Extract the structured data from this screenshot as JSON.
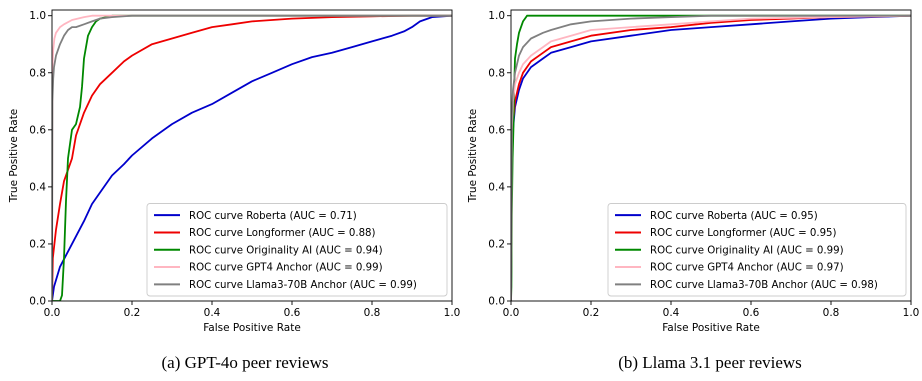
{
  "figure": {
    "captions": [
      "(a) GPT-4o peer reviews",
      "(b) Llama 3.1 peer reviews"
    ]
  },
  "chart_data": [
    {
      "type": "line",
      "caption": "(a) GPT-4o peer reviews",
      "xlabel": "False Positive Rate",
      "ylabel": "True Positive Rate",
      "xlim": [
        0.0,
        1.0
      ],
      "ylim": [
        0.0,
        1.02
      ],
      "xticks": [
        "0.0",
        "0.2",
        "0.4",
        "0.6",
        "0.8",
        "1.0"
      ],
      "yticks": [
        "0.0",
        "0.2",
        "0.4",
        "0.6",
        "0.8",
        "1.0"
      ],
      "grid": false,
      "legend_position": "bottom-right",
      "series": [
        {
          "name": "ROC curve Roberta (AUC = 0.71)",
          "color": "#0000cc",
          "x": [
            0,
            0.005,
            0.02,
            0.05,
            0.08,
            0.1,
            0.13,
            0.15,
            0.18,
            0.2,
            0.25,
            0.3,
            0.35,
            0.4,
            0.45,
            0.5,
            0.55,
            0.6,
            0.65,
            0.7,
            0.75,
            0.8,
            0.85,
            0.88,
            0.9,
            0.92,
            0.95,
            1.0
          ],
          "y": [
            0,
            0.05,
            0.12,
            0.2,
            0.28,
            0.34,
            0.4,
            0.44,
            0.48,
            0.51,
            0.57,
            0.62,
            0.66,
            0.69,
            0.73,
            0.77,
            0.8,
            0.83,
            0.855,
            0.87,
            0.89,
            0.91,
            0.93,
            0.945,
            0.96,
            0.98,
            0.995,
            1.0
          ]
        },
        {
          "name": "ROC curve Longformer (AUC = 0.88)",
          "color": "#ee0000",
          "x": [
            0,
            0.002,
            0.01,
            0.02,
            0.03,
            0.05,
            0.06,
            0.08,
            0.1,
            0.12,
            0.15,
            0.18,
            0.2,
            0.25,
            0.3,
            0.35,
            0.4,
            0.45,
            0.5,
            0.55,
            0.6,
            0.7,
            0.8,
            0.9,
            1.0
          ],
          "y": [
            0,
            0.15,
            0.25,
            0.34,
            0.42,
            0.5,
            0.58,
            0.66,
            0.72,
            0.76,
            0.8,
            0.84,
            0.86,
            0.9,
            0.92,
            0.94,
            0.96,
            0.97,
            0.98,
            0.985,
            0.99,
            0.995,
            0.998,
            1.0,
            1.0
          ]
        },
        {
          "name": "ROC curve Originality AI (AUC = 0.94)",
          "color": "#008800",
          "x": [
            0,
            0.02,
            0.025,
            0.03,
            0.035,
            0.04,
            0.05,
            0.06,
            0.07,
            0.075,
            0.08,
            0.09,
            0.1,
            0.11,
            0.12,
            0.15,
            0.2,
            0.3,
            0.5,
            1.0
          ],
          "y": [
            0,
            0.0,
            0.02,
            0.15,
            0.35,
            0.5,
            0.6,
            0.62,
            0.68,
            0.75,
            0.85,
            0.93,
            0.96,
            0.98,
            0.99,
            1.0,
            1.0,
            1.0,
            1.0,
            1.0
          ]
        },
        {
          "name": "ROC curve GPT4 Anchor (AUC = 0.99)",
          "color": "#ffb6c1",
          "x": [
            0,
            0.001,
            0.003,
            0.006,
            0.01,
            0.02,
            0.03,
            0.05,
            0.08,
            0.1,
            0.15,
            0.2,
            0.3,
            0.5,
            1.0
          ],
          "y": [
            0,
            0.82,
            0.88,
            0.92,
            0.94,
            0.96,
            0.97,
            0.985,
            0.995,
            1.0,
            1.0,
            1.0,
            1.0,
            1.0,
            1.0
          ]
        },
        {
          "name": "ROC curve Llama3-70B Anchor (AUC = 0.99)",
          "color": "#808080",
          "x": [
            0,
            0.001,
            0.003,
            0.005,
            0.01,
            0.02,
            0.03,
            0.04,
            0.05,
            0.06,
            0.08,
            0.1,
            0.12,
            0.15,
            0.2,
            0.3,
            0.5,
            1.0
          ],
          "y": [
            0,
            0.7,
            0.78,
            0.82,
            0.86,
            0.9,
            0.93,
            0.95,
            0.96,
            0.96,
            0.97,
            0.98,
            0.99,
            0.995,
            1.0,
            1.0,
            1.0,
            1.0
          ]
        }
      ]
    },
    {
      "type": "line",
      "caption": "(b) Llama 3.1 peer reviews",
      "xlabel": "False Positive Rate",
      "ylabel": "True Positive Rate",
      "xlim": [
        0.0,
        1.0
      ],
      "ylim": [
        0.0,
        1.02
      ],
      "xticks": [
        "0.0",
        "0.2",
        "0.4",
        "0.6",
        "0.8",
        "1.0"
      ],
      "yticks": [
        "0.0",
        "0.2",
        "0.4",
        "0.6",
        "0.8",
        "1.0"
      ],
      "grid": false,
      "legend_position": "bottom-right",
      "series": [
        {
          "name": "ROC curve Roberta  (AUC = 0.95)",
          "color": "#0000cc",
          "x": [
            0,
            0.002,
            0.005,
            0.01,
            0.02,
            0.03,
            0.05,
            0.08,
            0.1,
            0.15,
            0.2,
            0.3,
            0.4,
            0.5,
            0.6,
            0.7,
            0.8,
            0.9,
            1.0
          ],
          "y": [
            0,
            0.5,
            0.6,
            0.68,
            0.74,
            0.78,
            0.82,
            0.85,
            0.87,
            0.89,
            0.91,
            0.93,
            0.95,
            0.96,
            0.97,
            0.98,
            0.99,
            0.995,
            1.0
          ]
        },
        {
          "name": "ROC curve Longformer (AUC = 0.95)",
          "color": "#ee0000",
          "x": [
            0,
            0.002,
            0.005,
            0.01,
            0.02,
            0.03,
            0.05,
            0.08,
            0.1,
            0.15,
            0.2,
            0.3,
            0.4,
            0.5,
            0.6,
            0.8,
            1.0
          ],
          "y": [
            0,
            0.52,
            0.62,
            0.7,
            0.76,
            0.8,
            0.84,
            0.87,
            0.89,
            0.91,
            0.93,
            0.95,
            0.96,
            0.975,
            0.985,
            0.995,
            1.0
          ]
        },
        {
          "name": "ROC curve Originality AI (AUC = 0.99)",
          "color": "#008800",
          "x": [
            0,
            0.001,
            0.002,
            0.004,
            0.006,
            0.008,
            0.01,
            0.015,
            0.02,
            0.025,
            0.03,
            0.035,
            0.04,
            0.05,
            0.1,
            0.3,
            1.0
          ],
          "y": [
            0,
            0.05,
            0.3,
            0.5,
            0.6,
            0.75,
            0.85,
            0.9,
            0.94,
            0.96,
            0.98,
            0.99,
            1.0,
            1.0,
            1.0,
            1.0,
            1.0
          ]
        },
        {
          "name": "ROC curve GPT4 Anchor (AUC = 0.97)",
          "color": "#ffb6c1",
          "x": [
            0,
            0.002,
            0.005,
            0.01,
            0.02,
            0.03,
            0.05,
            0.08,
            0.1,
            0.15,
            0.2,
            0.3,
            0.4,
            0.5,
            0.6,
            0.8,
            1.0
          ],
          "y": [
            0,
            0.6,
            0.7,
            0.76,
            0.8,
            0.83,
            0.86,
            0.89,
            0.91,
            0.93,
            0.95,
            0.96,
            0.97,
            0.98,
            0.99,
            0.995,
            1.0
          ]
        },
        {
          "name": "ROC curve Llama3-70B Anchor (AUC = 0.98)",
          "color": "#808080",
          "x": [
            0,
            0.002,
            0.005,
            0.01,
            0.02,
            0.03,
            0.05,
            0.08,
            0.1,
            0.15,
            0.2,
            0.3,
            0.4,
            0.5,
            0.6,
            1.0
          ],
          "y": [
            0,
            0.65,
            0.74,
            0.8,
            0.86,
            0.89,
            0.92,
            0.94,
            0.95,
            0.97,
            0.98,
            0.99,
            0.995,
            1.0,
            1.0,
            1.0
          ]
        }
      ]
    }
  ]
}
